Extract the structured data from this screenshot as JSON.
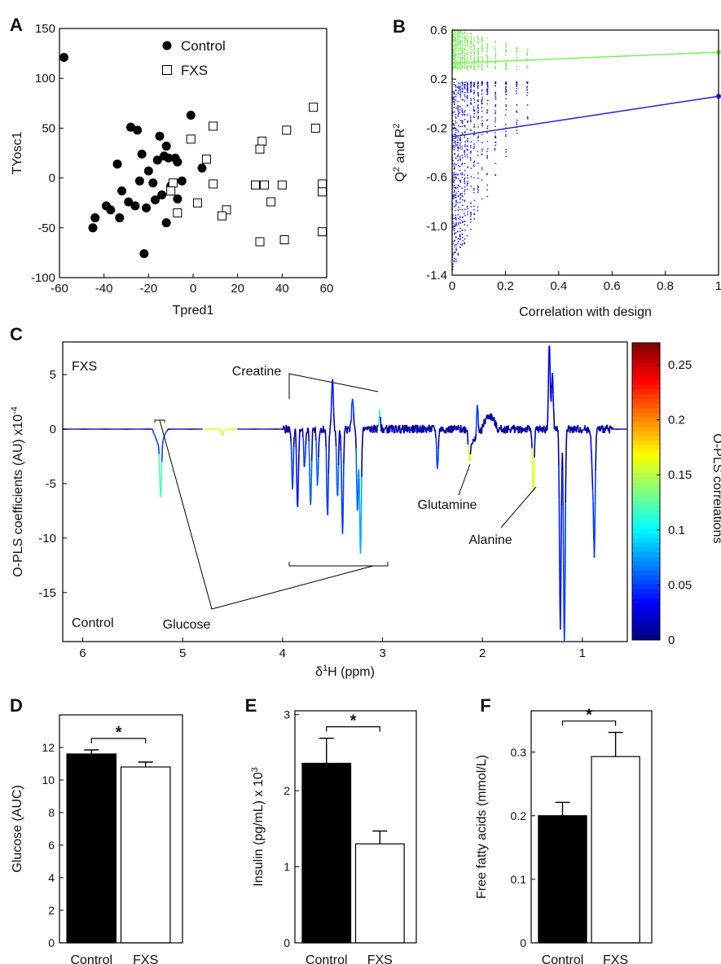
{
  "chart_data": [
    {
      "panel": "A",
      "type": "scatter",
      "xlabel": "Tpred1",
      "ylabel": "TYosc1",
      "xlim": [
        -60,
        60
      ],
      "ylim": [
        -100,
        150
      ],
      "xticks": [
        "-60",
        "-40",
        "-20",
        "0",
        "20",
        "40",
        "60"
      ],
      "yticks": [
        "-100",
        "-50",
        "0",
        "50",
        "100",
        "150"
      ],
      "legend_position": "top-center",
      "grid": false,
      "series": [
        {
          "name": "Control",
          "marker": "filled-circle",
          "points": [
            [
              -58,
              121
            ],
            [
              -1,
              63
            ],
            [
              -28,
              51
            ],
            [
              -25,
              48
            ],
            [
              -15,
              42
            ],
            [
              -12,
              32
            ],
            [
              -13,
              22
            ],
            [
              -11,
              20
            ],
            [
              -8,
              20
            ],
            [
              -23,
              24
            ],
            [
              -16,
              18
            ],
            [
              -34,
              14
            ],
            [
              -7,
              16
            ],
            [
              -20,
              7
            ],
            [
              4,
              10
            ],
            [
              -18,
              -5
            ],
            [
              -24,
              -3
            ],
            [
              -5,
              -3
            ],
            [
              -10,
              -8
            ],
            [
              -32,
              -13
            ],
            [
              -14,
              -17
            ],
            [
              -7,
              -21
            ],
            [
              -29,
              -24
            ],
            [
              -17,
              -22
            ],
            [
              -26,
              -28
            ],
            [
              -39,
              -28
            ],
            [
              -21,
              -30
            ],
            [
              -37,
              -32
            ],
            [
              -33,
              -40
            ],
            [
              -44,
              -40
            ],
            [
              -12,
              -45
            ],
            [
              -45,
              -50
            ],
            [
              -22,
              -76
            ]
          ]
        },
        {
          "name": "FXS",
          "marker": "open-square",
          "points": [
            [
              54,
              71
            ],
            [
              55,
              50
            ],
            [
              42,
              48
            ],
            [
              9,
              52
            ],
            [
              -1,
              39
            ],
            [
              31,
              37
            ],
            [
              30,
              29
            ],
            [
              6,
              19
            ],
            [
              -9,
              -5
            ],
            [
              9,
              -6
            ],
            [
              28,
              -7
            ],
            [
              32,
              -7
            ],
            [
              40,
              -7
            ],
            [
              58,
              -6
            ],
            [
              58,
              -14
            ],
            [
              -10,
              -13
            ],
            [
              2,
              -25
            ],
            [
              35,
              -24
            ],
            [
              -7,
              -35
            ],
            [
              15,
              -32
            ],
            [
              13,
              -38
            ],
            [
              58,
              -54
            ],
            [
              41,
              -62
            ],
            [
              30,
              -64
            ]
          ]
        }
      ]
    },
    {
      "panel": "B",
      "type": "scatter",
      "xlabel": "Correlation with design",
      "ylabel": "Q2 and R2",
      "ylabel_main": "Q",
      "ylabel_sup1": "2",
      "ylabel_mid": " and R",
      "ylabel_sup2": "2",
      "xlim": [
        0,
        1
      ],
      "ylim": [
        -1.4,
        0.6
      ],
      "xticks": [
        "0",
        "0.2",
        "0.4",
        "0.6",
        "0.8",
        "1"
      ],
      "yticks": [
        "-1.4",
        "-1.0",
        "-0.6",
        "-0.2",
        "0.2",
        "0.6"
      ],
      "colors": {
        "R2": "#7cf05a",
        "Q2": "#2222dd"
      },
      "series": [
        {
          "name": "R2",
          "regression": [
            [
              0,
              0.33
            ],
            [
              1,
              0.42
            ]
          ],
          "cloud_ymin": 0.28,
          "cloud_ymax": 0.62
        },
        {
          "name": "Q2",
          "regression": [
            [
              0,
              -0.27
            ],
            [
              1,
              0.06
            ]
          ],
          "cloud_ymin": -1.35,
          "cloud_ymax": 0.18
        }
      ],
      "permutation_x_columns": [
        0.0,
        0.006,
        0.012,
        0.02,
        0.028,
        0.036,
        0.045,
        0.055,
        0.068,
        0.08,
        0.095,
        0.11,
        0.13,
        0.16,
        0.2,
        0.24,
        0.28
      ]
    },
    {
      "panel": "C",
      "type": "line",
      "xlabel": "δ¹H (ppm)",
      "xlabel_delta": "δ",
      "xlabel_sup": "1",
      "xlabel_rest": "H (ppm)",
      "ylabel": "O-PLS coefficients (AU) x10-4",
      "ylabel_main": "O-PLS coefficients (AU) x10",
      "ylabel_sup": "-4",
      "xlim": [
        6.2,
        0.55
      ],
      "x_reversed": true,
      "ylim": [
        -19.5,
        8
      ],
      "xticks": [
        "6",
        "5",
        "4",
        "3",
        "2",
        "1"
      ],
      "yticks": [
        "5",
        "0",
        "-5",
        "-10",
        "-15"
      ],
      "colorbar": {
        "label": "O-PLS correlations",
        "ticks": [
          "0.25",
          "0.2",
          "0.15",
          "0.1",
          "0.05",
          "0"
        ],
        "range": [
          0,
          0.27
        ]
      },
      "side_labels": {
        "top": "FXS",
        "bottom": "Control"
      },
      "annotations": [
        "Creatine",
        "Glucose",
        "Glutamine",
        "Alanine"
      ],
      "peaks": [
        [
          5.22,
          -4.8,
          0.12
        ],
        [
          4.6,
          -0.6,
          0.14
        ],
        [
          3.9,
          -5.5,
          0.05
        ],
        [
          3.85,
          -7.5,
          0.04
        ],
        [
          3.78,
          -3.5,
          0.05
        ],
        [
          3.72,
          -7.2,
          0.06
        ],
        [
          3.65,
          -5.0,
          0.06
        ],
        [
          3.55,
          -8.0,
          0.05
        ],
        [
          3.5,
          4.8,
          0.04
        ],
        [
          3.45,
          -6.5,
          0.06
        ],
        [
          3.4,
          -9.5,
          0.05
        ],
        [
          3.3,
          3.0,
          0.05
        ],
        [
          3.25,
          -7.8,
          0.06
        ],
        [
          3.22,
          -11.5,
          0.08
        ],
        [
          3.03,
          1.5,
          0.12
        ],
        [
          2.45,
          -3.5,
          0.05
        ],
        [
          2.13,
          -2.2,
          0.16
        ],
        [
          2.05,
          3.0,
          0.05
        ],
        [
          1.49,
          -6.0,
          0.16
        ],
        [
          1.33,
          7.8,
          0.03
        ],
        [
          1.3,
          5.0,
          0.03
        ],
        [
          1.22,
          -18.0,
          0.04
        ],
        [
          1.18,
          -19.3,
          0.05
        ],
        [
          0.9,
          -4.0,
          0.03
        ],
        [
          0.88,
          -11.2,
          0.05
        ]
      ]
    },
    {
      "panel": "D",
      "type": "bar",
      "categories": [
        "Control",
        "FXS"
      ],
      "values": [
        11.6,
        10.8
      ],
      "errors": [
        0.25,
        0.3
      ],
      "ylabel": "Glucose (AUC)",
      "ylim": [
        0,
        14
      ],
      "yticks": [
        "0",
        "2",
        "4",
        "6",
        "8",
        "10",
        "12"
      ],
      "significance": "*",
      "fills": [
        "#000000",
        "#ffffff"
      ]
    },
    {
      "panel": "E",
      "type": "bar",
      "categories": [
        "Control",
        "FXS"
      ],
      "values": [
        2.36,
        1.3
      ],
      "errors": [
        0.33,
        0.17
      ],
      "ylabel": "Insulin (pg/mL) x 103",
      "ylabel_main": "Insulin (pg/mL) x 10",
      "ylabel_sup": "3",
      "ylim": [
        0,
        3.05
      ],
      "yticks": [
        "0",
        "1",
        "2",
        "3"
      ],
      "significance": "*",
      "fills": [
        "#000000",
        "#ffffff"
      ]
    },
    {
      "panel": "F",
      "type": "bar",
      "categories": [
        "Control",
        "FXS"
      ],
      "values": [
        0.2,
        0.293
      ],
      "errors": [
        0.021,
        0.038
      ],
      "ylabel": "Free fatty acids (mmol/L)",
      "ylim": [
        0,
        0.365
      ],
      "yticks": [
        "0",
        "0.1",
        "0.2",
        "0.3"
      ],
      "significance": "*",
      "fills": [
        "#000000",
        "#ffffff"
      ]
    }
  ]
}
